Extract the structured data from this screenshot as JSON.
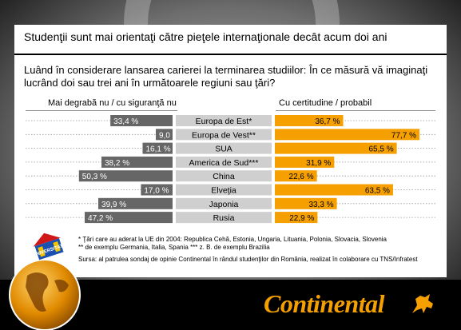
{
  "slide": {
    "title": "Studenţii sunt mai orientaţi către pieţele internaţionale decât acum doi ani",
    "question": "Luând în considerare lansarea carierei la terminarea studiilor: În ce măsură vă imaginaţi lucrând doi sau trei ani în următoarele regiuni sau ţări?",
    "header_left": "Mai degrabă nu / cu siguranţă nu",
    "header_right": "Cu certitudine / probabil",
    "footnotes": [
      "* Ţări care au aderat la UE din 2004: Republica Cehă, Estonia, Ungaria, Lituania, Polonia, Slovacia, Slovenia",
      "** de exemplu Germania, Italia, Spania     *** z. B. de exemplu Brazilia"
    ],
    "source": "Sursa: al patrulea sondaj de opinie Continental în rândul studenţilor din România, realizat în colaborare cu TNS/Infratest",
    "logo_text": "Continental",
    "badge_text": "UNIVERSITATE"
  },
  "colors": {
    "negative": "#666666",
    "positive": "#f5a000",
    "label_bg": "#cfcfcf"
  },
  "icons": {
    "logo_mark": "horse-icon",
    "globe": "globe-icon"
  },
  "chart_data": {
    "type": "bar",
    "orientation": "diverging-horizontal",
    "categories": [
      "Europa de Est*",
      "Europa de Vest**",
      "SUA",
      "America de Sud***",
      "China",
      "Elveţia",
      "Japonia",
      "Rusia"
    ],
    "series": [
      {
        "name": "Mai degrabă nu / cu siguranţă nu",
        "values": [
          33.4,
          9.0,
          16.1,
          38.2,
          50.3,
          17.0,
          39.9,
          47.2
        ],
        "labels": [
          "33,4 %",
          "9,0 %",
          "16,1 %",
          "38,2 %",
          "50,3 %",
          "17,0 %",
          "39,9 %",
          "47,2 %"
        ]
      },
      {
        "name": "Cu certitudine / probabil",
        "values": [
          36.7,
          77.7,
          65.5,
          31.9,
          22.6,
          63.5,
          33.3,
          22.9
        ],
        "labels": [
          "36,7 %",
          "77,7 %",
          "65,5 %",
          "31,9 %",
          "22,6 %",
          "63,5 %",
          "33,3 %",
          "22,9 %"
        ]
      }
    ],
    "unit": "%"
  }
}
